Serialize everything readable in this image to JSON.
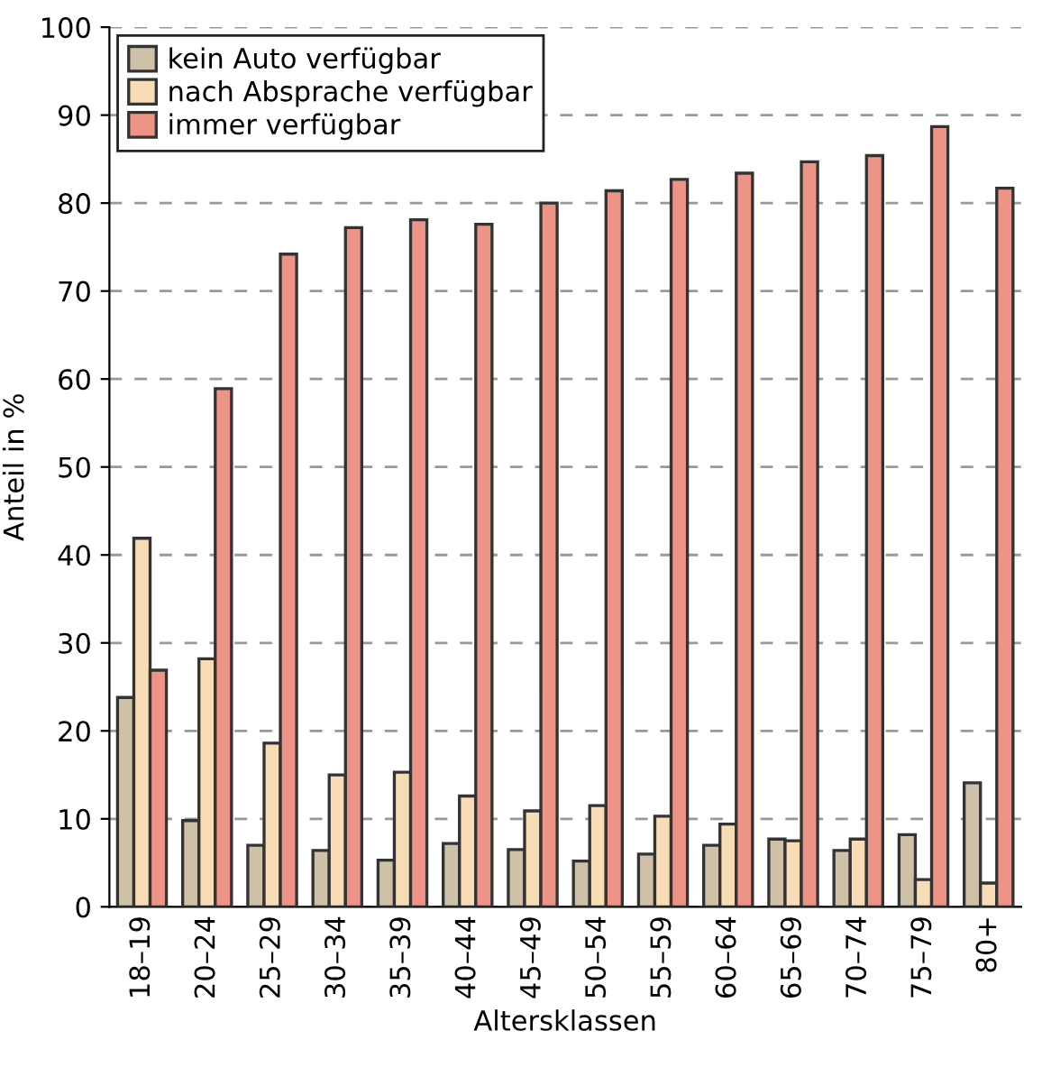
{
  "chart_data": {
    "type": "bar",
    "xlabel": "Altersklassen",
    "ylabel": "Anteil in %",
    "categories": [
      "18–19",
      "20–24",
      "25–29",
      "30–34",
      "35–39",
      "40–44",
      "45–49",
      "50–54",
      "55–59",
      "60–64",
      "65–69",
      "70–74",
      "75–79",
      "80+"
    ],
    "series": [
      {
        "name": "kein Auto verfügbar",
        "color": "#cfc0a8",
        "values": [
          23.8,
          9.8,
          7,
          6.4,
          5.3,
          7.2,
          6.5,
          5.2,
          6,
          7,
          7.7,
          6.4,
          8.2,
          14.1
        ]
      },
      {
        "name": "nach Absprache verfügbar",
        "color": "#f8dcb6",
        "values": [
          41.9,
          28.2,
          18.6,
          15,
          15.3,
          12.6,
          10.9,
          11.5,
          10.3,
          9.4,
          7.5,
          7.7,
          3.1,
          2.7
        ]
      },
      {
        "name": "immer verfügbar",
        "color": "#ee9486",
        "values": [
          26.9,
          58.9,
          74.2,
          77.2,
          78.1,
          77.6,
          80,
          81.4,
          82.7,
          83.4,
          84.7,
          85.4,
          88.7,
          81.7
        ]
      }
    ],
    "ylim": [
      0,
      100
    ],
    "yticks": [
      0,
      10,
      20,
      30,
      40,
      50,
      60,
      70,
      80,
      90,
      100
    ],
    "grid": "y",
    "legend": "top left"
  }
}
